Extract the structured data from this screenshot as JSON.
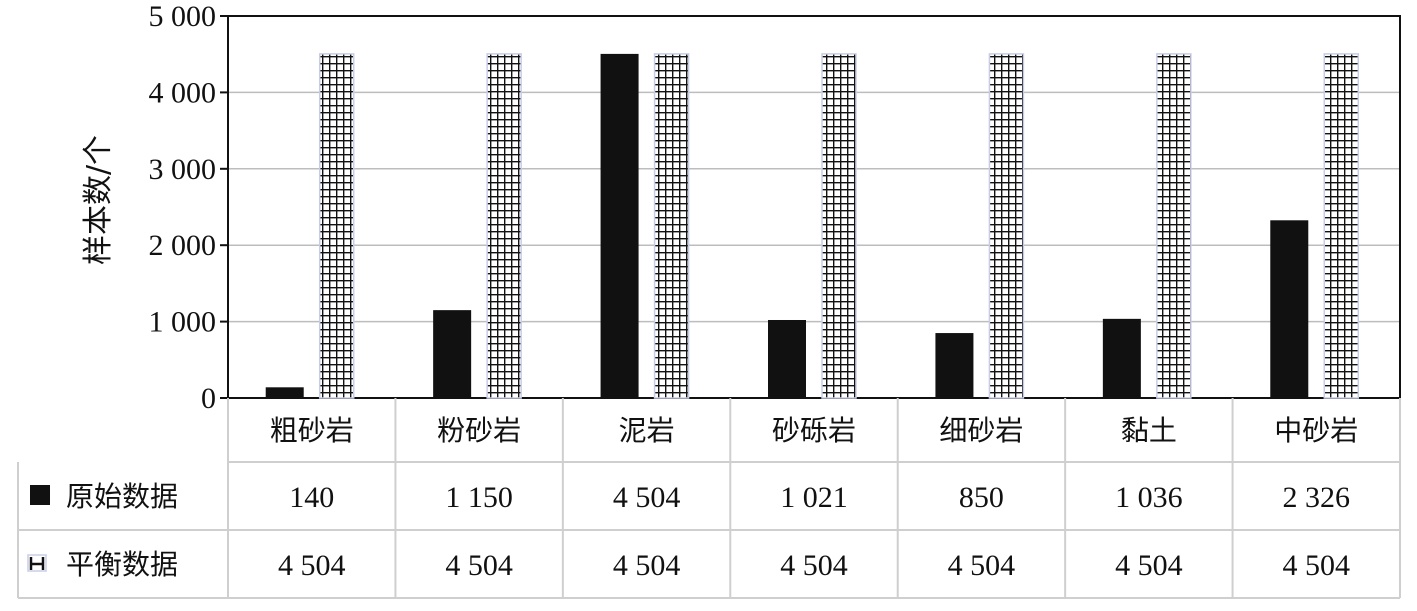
{
  "chart_data": {
    "type": "bar",
    "ylabel": "样本数/个",
    "ylim": [
      0,
      5000
    ],
    "y_ticks": [
      "0",
      "1 000",
      "2 000",
      "3 000",
      "4 000",
      "5 000"
    ],
    "grid": true,
    "categories": [
      "粗砂岩",
      "粉砂岩",
      "泥岩",
      "砂砾岩",
      "细砂岩",
      "黏土",
      "中砂岩"
    ],
    "series": [
      {
        "name": "原始数据",
        "values": [
          140,
          1150,
          4504,
          1021,
          850,
          1036,
          2326
        ],
        "labels": [
          "140",
          "1 150",
          "4 504",
          "1 021",
          "850",
          "1 036",
          "2 326"
        ],
        "color": "#111111",
        "pattern": "solid"
      },
      {
        "name": "平衡数据",
        "values": [
          4504,
          4504,
          4504,
          4504,
          4504,
          4504,
          4504
        ],
        "labels": [
          "4 504",
          "4 504",
          "4 504",
          "4 504",
          "4 504",
          "4 504",
          "4 504"
        ],
        "color": "#111111",
        "pattern": "grid"
      }
    ],
    "legend": "data-table"
  }
}
